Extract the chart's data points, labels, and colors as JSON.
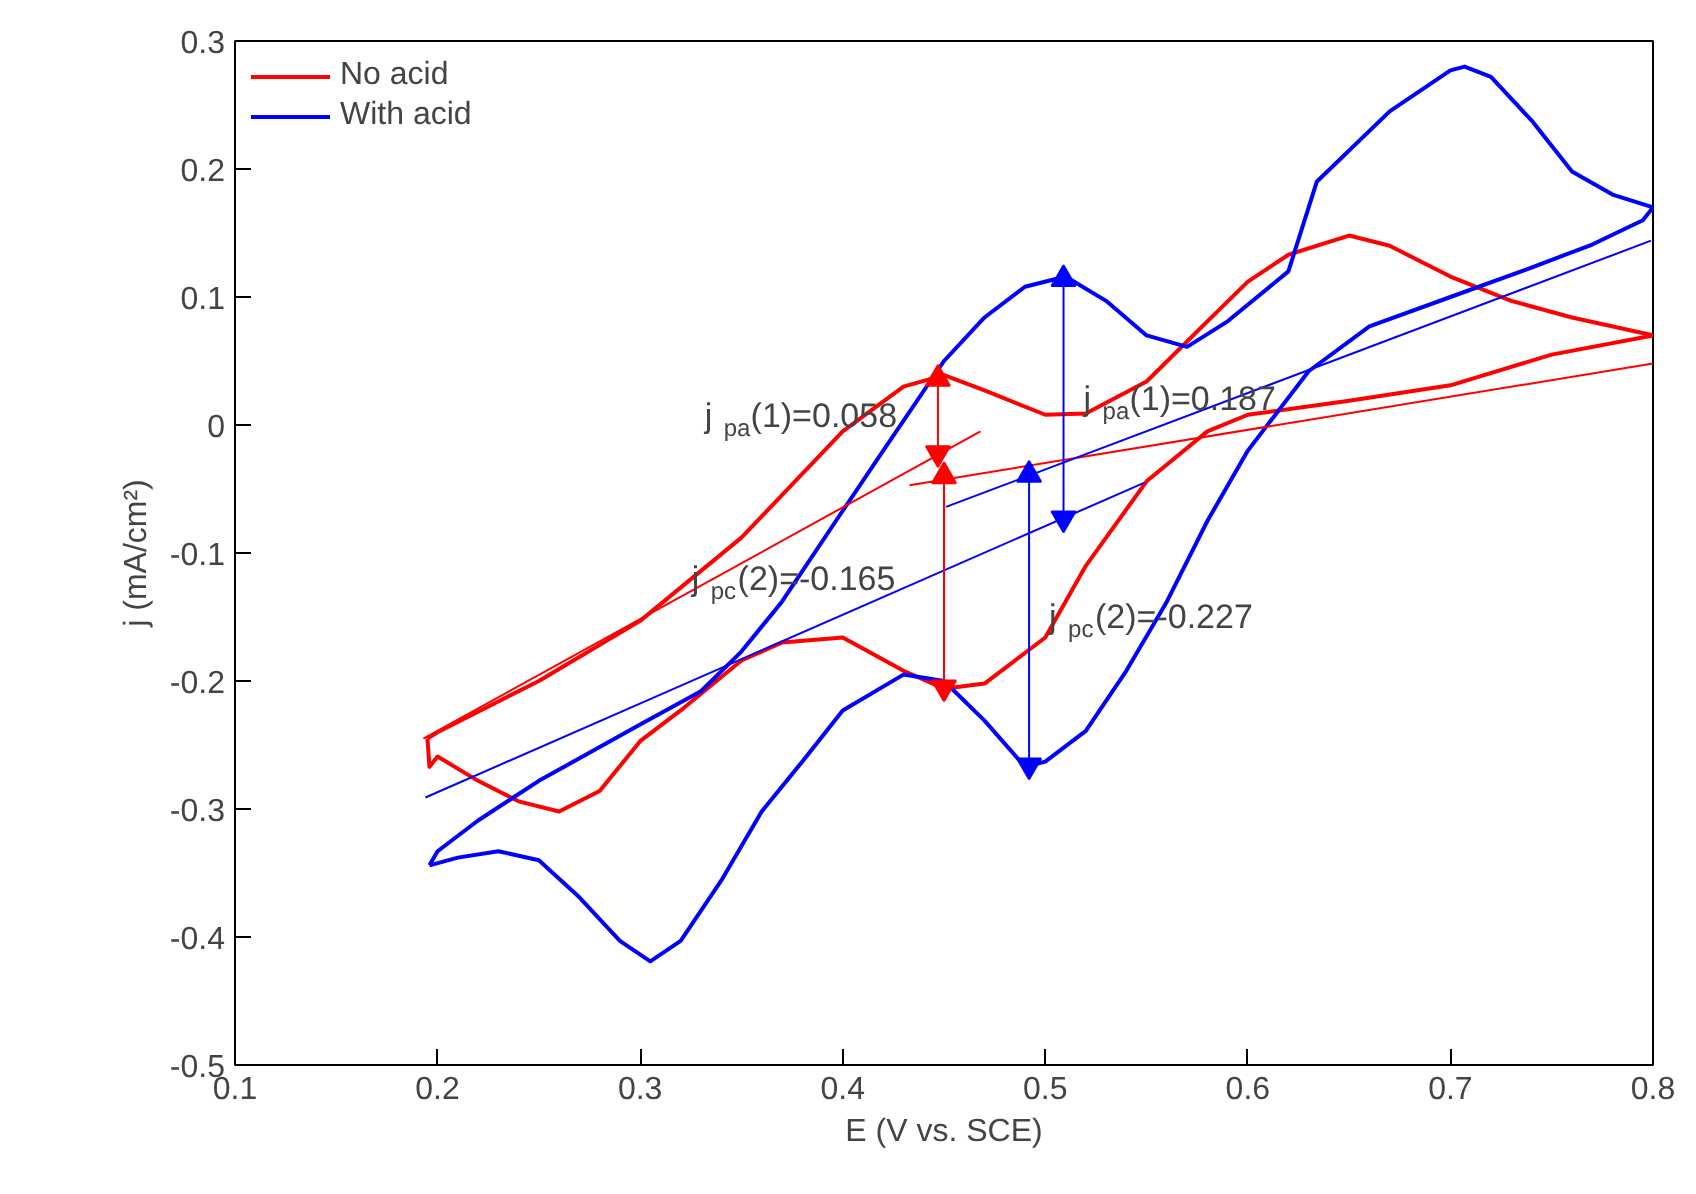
{
  "chart_data": {
    "type": "line",
    "xlabel": "E (V vs. SCE)",
    "ylabel": "j (mA/cm²)",
    "xlim": [
      0.1,
      0.8
    ],
    "ylim": [
      -0.5,
      0.3
    ],
    "xticks": [
      0.1,
      0.2,
      0.3,
      0.4,
      0.5,
      0.6,
      0.7,
      0.8
    ],
    "yticks": [
      -0.5,
      -0.4,
      -0.3,
      -0.2,
      -0.1,
      0,
      0.1,
      0.2,
      0.3
    ],
    "grid": false,
    "legend": "top left",
    "marker": "none",
    "line_style": "solid",
    "series": [
      {
        "name": "No acid",
        "color": "#ff0000",
        "x": [
          0.195,
          0.2,
          0.25,
          0.3,
          0.35,
          0.4,
          0.43,
          0.45,
          0.47,
          0.5,
          0.52,
          0.55,
          0.58,
          0.6,
          0.62,
          0.65,
          0.67,
          0.7,
          0.73,
          0.76,
          0.8
        ],
        "values": [
          -0.245,
          -0.24,
          -0.2,
          -0.153,
          -0.088,
          -0.005,
          0.03,
          0.039,
          0.027,
          0.008,
          0.009,
          0.034,
          0.081,
          0.112,
          0.133,
          0.148,
          0.14,
          0.116,
          0.097,
          0.084,
          0.07
        ]
      },
      {
        "color": "#ff0000",
        "x": [
          0.8,
          0.75,
          0.7,
          0.65,
          0.6,
          0.58,
          0.55,
          0.52,
          0.5,
          0.47,
          0.45,
          0.43,
          0.4,
          0.37,
          0.35,
          0.32,
          0.3,
          0.28,
          0.26,
          0.24,
          0.22,
          0.2,
          0.196,
          0.195
        ],
        "values": [
          0.07,
          0.055,
          0.031,
          0.019,
          0.008,
          -0.005,
          -0.044,
          -0.11,
          -0.166,
          -0.202,
          -0.206,
          -0.192,
          -0.166,
          -0.17,
          -0.184,
          -0.223,
          -0.247,
          -0.286,
          -0.302,
          -0.294,
          -0.278,
          -0.259,
          -0.267,
          -0.245
        ]
      },
      {
        "name": "With acid",
        "color": "#0000ff",
        "x": [
          0.196,
          0.2,
          0.22,
          0.25,
          0.3,
          0.33,
          0.35,
          0.37,
          0.4,
          0.42,
          0.45,
          0.47,
          0.49,
          0.51,
          0.53,
          0.55,
          0.57,
          0.59,
          0.62,
          0.634,
          0.67,
          0.7,
          0.707,
          0.72,
          0.74,
          0.76,
          0.78,
          0.8
        ],
        "values": [
          -0.344,
          -0.333,
          -0.309,
          -0.278,
          -0.234,
          -0.208,
          -0.177,
          -0.138,
          -0.067,
          -0.02,
          0.05,
          0.084,
          0.108,
          0.116,
          0.097,
          0.07,
          0.061,
          0.081,
          0.12,
          0.19,
          0.245,
          0.277,
          0.28,
          0.272,
          0.238,
          0.198,
          0.18,
          0.17
        ]
      },
      {
        "color": "#0000ff",
        "x": [
          0.8,
          0.795,
          0.77,
          0.74,
          0.7,
          0.66,
          0.63,
          0.6,
          0.58,
          0.56,
          0.54,
          0.52,
          0.5,
          0.49,
          0.47,
          0.45,
          0.43,
          0.4,
          0.38,
          0.36,
          0.34,
          0.32,
          0.305,
          0.29,
          0.27,
          0.25,
          0.23,
          0.21,
          0.196
        ],
        "values": [
          0.17,
          0.16,
          0.141,
          0.123,
          0.1,
          0.077,
          0.042,
          -0.02,
          -0.075,
          -0.138,
          -0.192,
          -0.239,
          -0.263,
          -0.267,
          -0.231,
          -0.2,
          -0.195,
          -0.223,
          -0.263,
          -0.302,
          -0.356,
          -0.403,
          -0.419,
          -0.403,
          -0.369,
          -0.34,
          -0.333,
          -0.338,
          -0.344
        ]
      },
      {
        "color": "#ff0000",
        "x": [
          0.193,
          0.468
        ],
        "values": [
          -0.245,
          -0.005
        ]
      },
      {
        "color": "#ff0000",
        "x": [
          0.433,
          0.8
        ],
        "values": [
          -0.047,
          0.048
        ]
      },
      {
        "color": "#0000ff",
        "x": [
          0.194,
          0.549
        ],
        "values": [
          -0.291,
          -0.045
        ]
      },
      {
        "color": "#0000ff",
        "x": [
          0.451,
          0.799
        ],
        "values": [
          -0.064,
          0.144
        ]
      },
      {
        "color": "#ff0000",
        "marker": "triangle",
        "x": [
          0.447,
          0.447
        ],
        "values": [
          0.036,
          -0.022
        ]
      },
      {
        "color": "#ff0000",
        "marker": "triangle",
        "x": [
          0.45,
          0.45
        ],
        "values": [
          -0.04,
          -0.205
        ]
      },
      {
        "color": "#0000ff",
        "marker": "triangle",
        "x": [
          0.509,
          0.509
        ],
        "values": [
          0.114,
          -0.073
        ]
      },
      {
        "color": "#0000ff",
        "marker": "triangle",
        "x": [
          0.492,
          0.492
        ],
        "values": [
          -0.039,
          -0.266
        ]
      }
    ],
    "annotations": [
      {
        "text": "j$_{pa}$(1)=0.058",
        "x": 0.447,
        "y": 0.007
      },
      {
        "text": "j$_{pc}$(2)=-0.165",
        "x": 0.45,
        "y": -0.12
      },
      {
        "text": "j$_{pa}$(1)=0.187",
        "x": 0.509,
        "y": 0.02
      },
      {
        "text": "j$_{pc}$(2)=-0.227",
        "x": 0.492,
        "y": -0.15
      }
    ]
  }
}
